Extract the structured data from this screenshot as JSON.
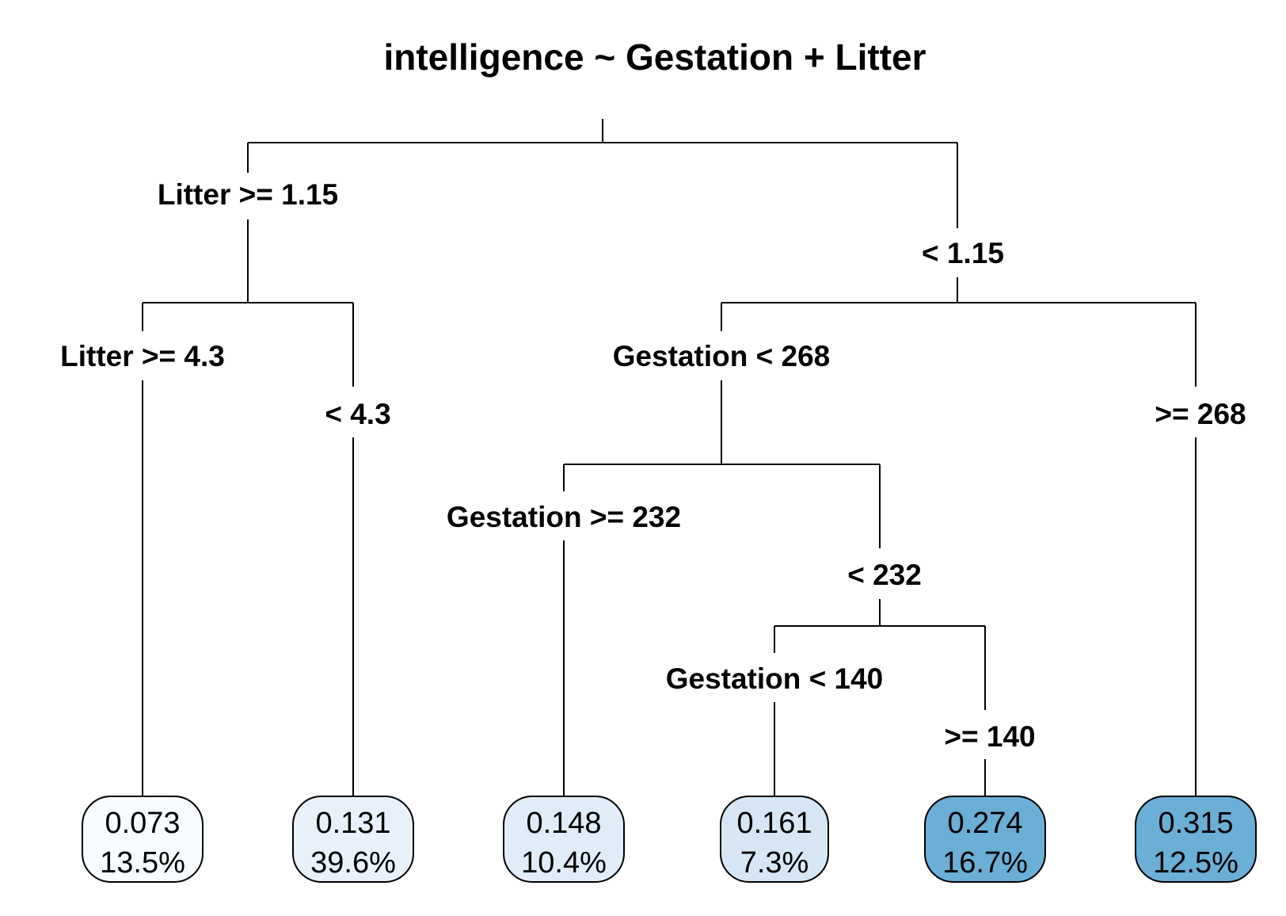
{
  "title": "intelligence ~ Gestation + Litter",
  "split_labels": {
    "root_left": "Litter >= 1.15",
    "root_right": "< 1.15",
    "a_left": "Litter >= 4.3",
    "a_right": "< 4.3",
    "b_left": "Gestation < 268",
    "b_right": ">= 268",
    "c_left": "Gestation >= 232",
    "c_right": "< 232",
    "d_left": "Gestation < 140",
    "d_right": ">= 140"
  },
  "leaves": [
    {
      "value": "0.073",
      "percent": "13.5%",
      "fill": "#f7fbff"
    },
    {
      "value": "0.131",
      "percent": "39.6%",
      "fill": "#e8f1fa"
    },
    {
      "value": "0.148",
      "percent": "10.4%",
      "fill": "#e0ecf7"
    },
    {
      "value": "0.161",
      "percent": "7.3%",
      "fill": "#d6e6f4"
    },
    {
      "value": "0.274",
      "percent": "16.7%",
      "fill": "#6baed6"
    },
    {
      "value": "0.315",
      "percent": "12.5%",
      "fill": "#6baed6"
    }
  ]
}
